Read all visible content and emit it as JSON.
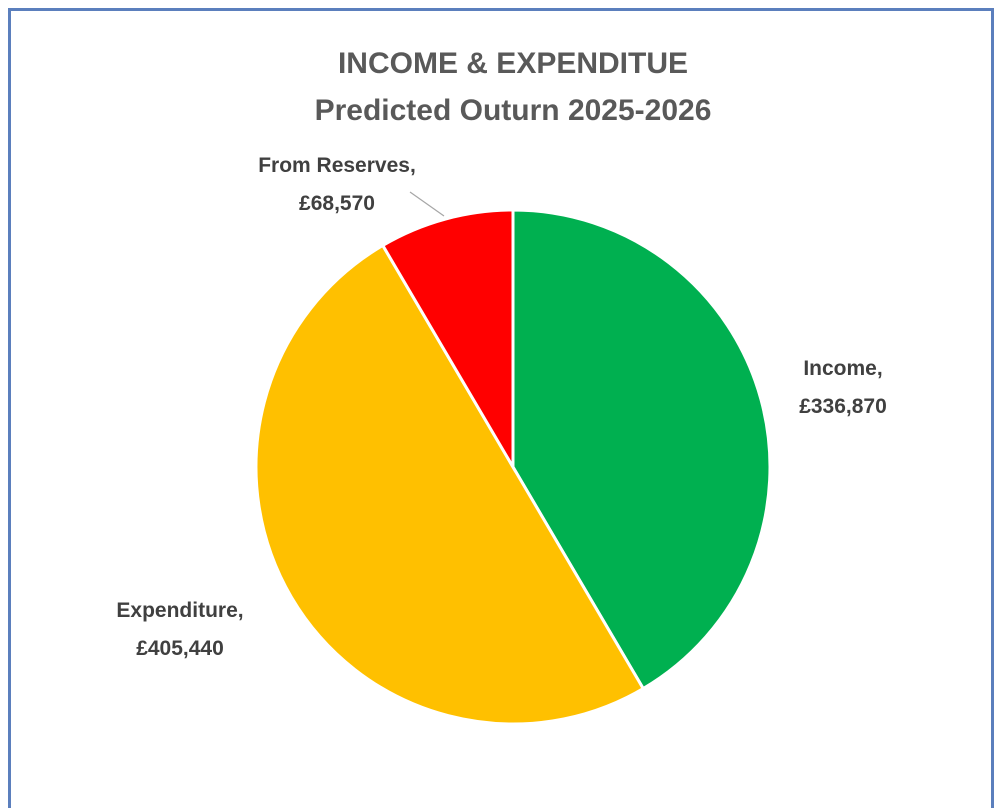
{
  "chart_data": {
    "type": "pie",
    "title": "INCOME & EXPENDITUE",
    "subtitle": "Predicted Outurn 2025-2026",
    "slices": [
      {
        "name": "Income",
        "value": 336870,
        "value_label": "£336,870",
        "color": "#00b050"
      },
      {
        "name": "Expenditure",
        "value": 405440,
        "value_label": "£405,440",
        "color": "#ffc000"
      },
      {
        "name": "From Reserves",
        "value": 68570,
        "value_label": "£68,570",
        "color": "#ff0000"
      }
    ],
    "start_angle": "12 o'clock",
    "direction": "clockwise",
    "legend": "none",
    "data_labels": "category name and value"
  }
}
